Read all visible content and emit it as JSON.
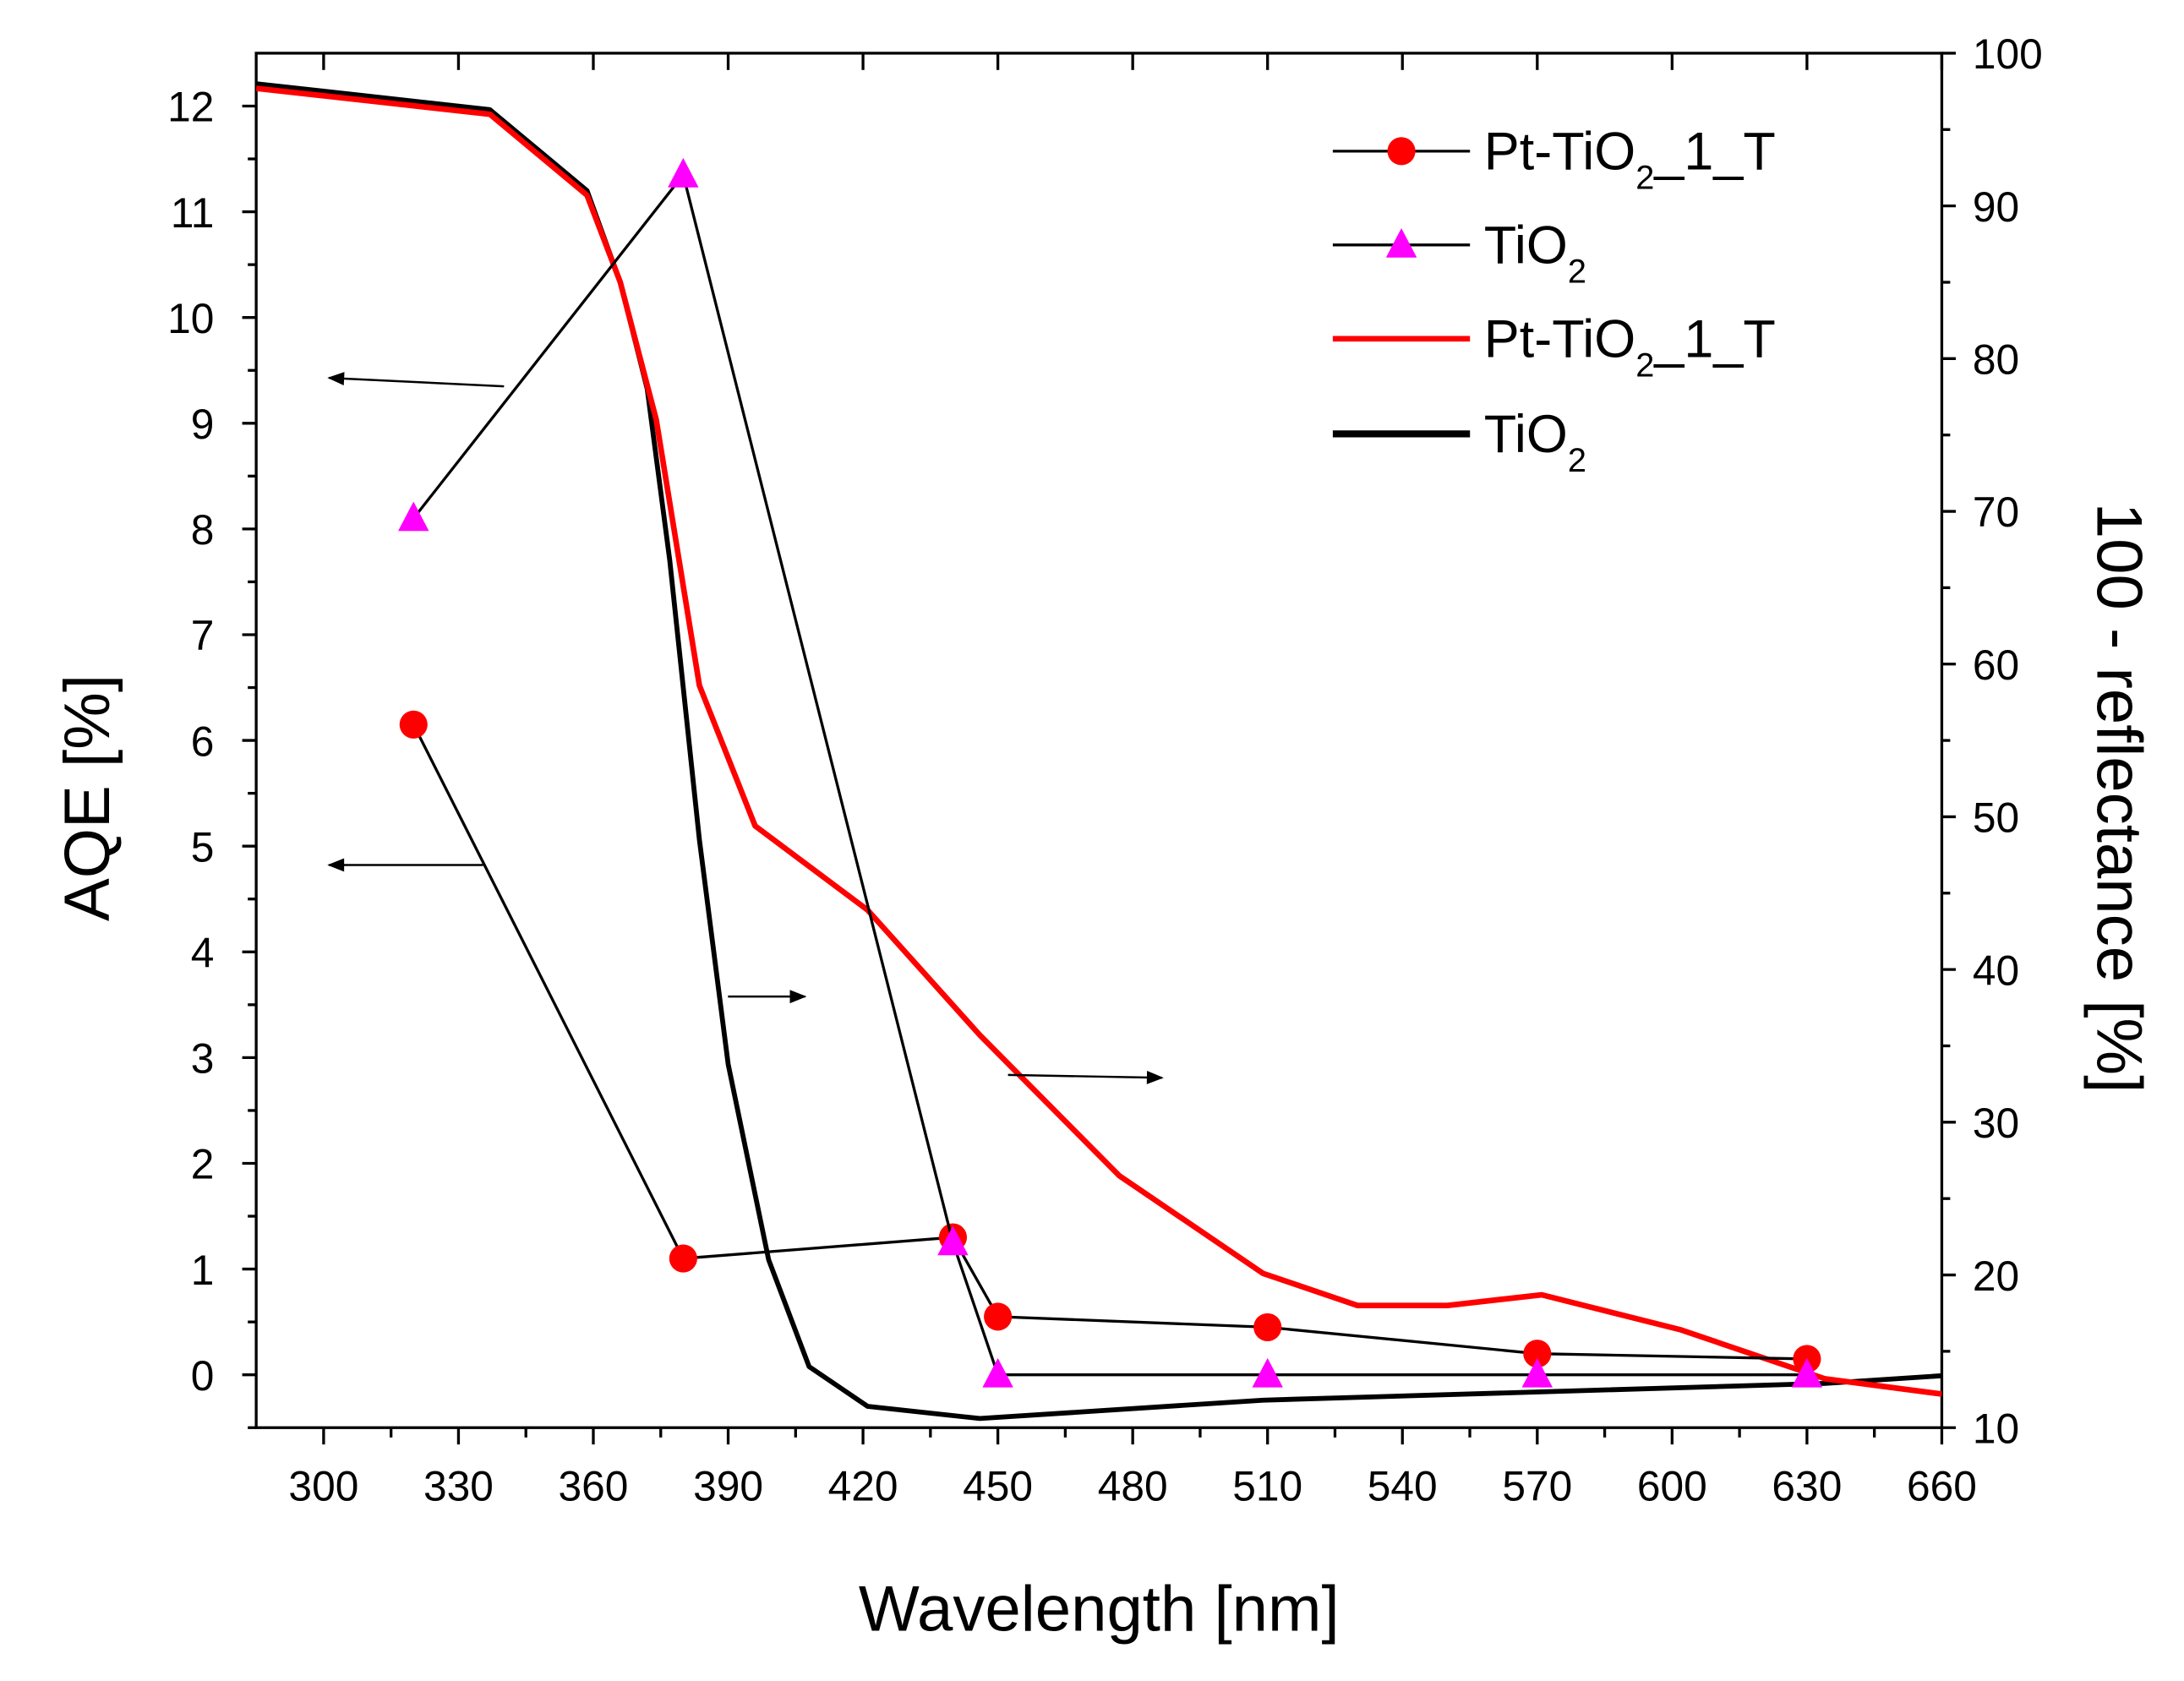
{
  "chart_data": {
    "type": "line",
    "xlabel": "Wavelength [nm]",
    "ylabel": "AQE [%]",
    "ylabel_right": "100 - reflectance [%]",
    "xlim": [
      285,
      660
    ],
    "ylim": [
      -0.5,
      12.5
    ],
    "ylim_right": [
      10,
      100
    ],
    "x_ticks": [
      300,
      330,
      360,
      390,
      420,
      450,
      480,
      510,
      540,
      570,
      600,
      630,
      660
    ],
    "y_ticks": [
      0,
      1,
      2,
      3,
      4,
      5,
      6,
      7,
      8,
      9,
      10,
      11,
      12
    ],
    "y_ticks_right": [
      10,
      20,
      30,
      40,
      50,
      60,
      70,
      80,
      90,
      100
    ],
    "colors": {
      "red": "#ff0000",
      "magenta": "#ff00ff",
      "black": "#000000"
    },
    "series": [
      {
        "name": "Pt-TiO2_1_T",
        "legend_main": "Pt-TiO",
        "legend_sub": "2",
        "legend_tail": "_1_T",
        "axis": "left",
        "style": "line-circle",
        "x": [
          320,
          380,
          440,
          450,
          510,
          570,
          630
        ],
        "y": [
          6.15,
          1.1,
          1.3,
          0.55,
          0.45,
          0.2,
          0.15
        ]
      },
      {
        "name": "TiO2",
        "legend_main": "TiO",
        "legend_sub": "2",
        "legend_tail": "",
        "axis": "left",
        "style": "line-triangle",
        "x": [
          320,
          380,
          440,
          450,
          510,
          570,
          630
        ],
        "y": [
          8.1,
          11.35,
          1.25,
          0.0,
          0.0,
          0.0,
          0.0
        ]
      },
      {
        "name": "Pt-TiO2_1_T",
        "legend_main": "Pt-TiO",
        "legend_sub": "2",
        "legend_tail": "_1_T",
        "axis": "right",
        "style": "red-line",
        "x": [
          285,
          337,
          358.6,
          366,
          374,
          383.6,
          396,
          421,
          446,
          477,
          509,
          530,
          550,
          571,
          602,
          634,
          660
        ],
        "y": [
          97.7,
          96,
          90.7,
          85,
          76,
          58.6,
          49.4,
          43.9,
          35.7,
          26.5,
          20.1,
          18,
          18,
          18.7,
          16.4,
          13.2,
          12.2
        ]
      },
      {
        "name": "TiO2",
        "legend_main": "TiO",
        "legend_sub": "2",
        "legend_tail": "",
        "axis": "right",
        "style": "black-line",
        "x": [
          285,
          337,
          358.6,
          366,
          372,
          377,
          383.6,
          390,
          399,
          408,
          421,
          446,
          509,
          634,
          660
        ],
        "y": [
          98,
          96.3,
          91,
          85,
          78,
          66.8,
          48.5,
          33.8,
          21,
          14,
          11.4,
          10.6,
          11.8,
          12.9,
          13.4
        ]
      }
    ]
  }
}
